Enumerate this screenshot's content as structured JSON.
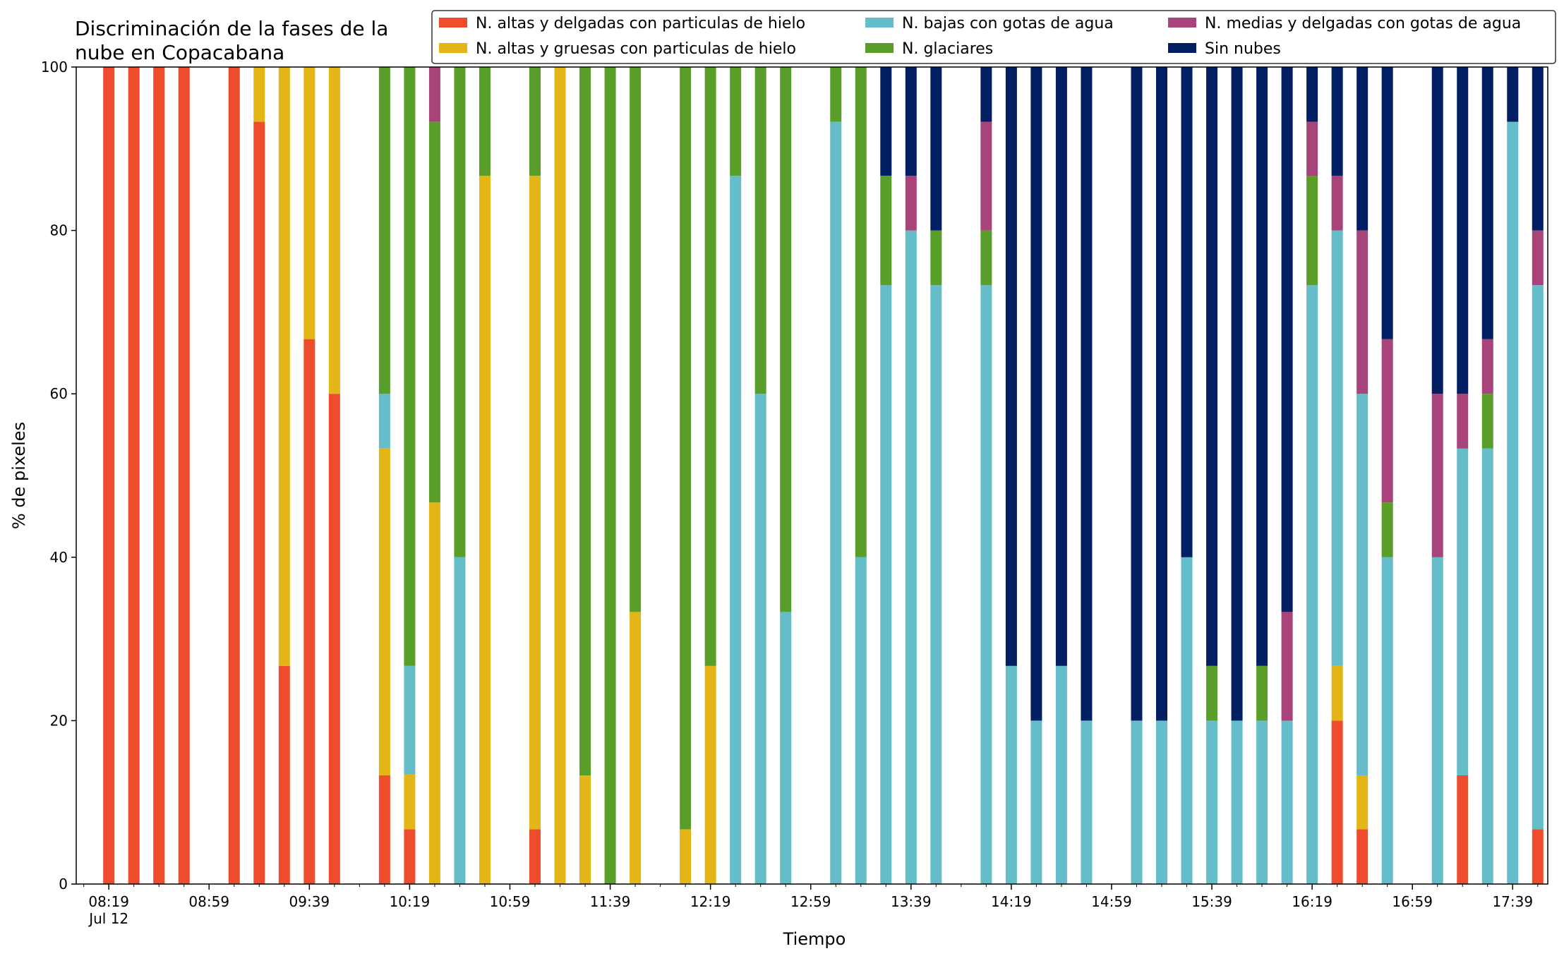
{
  "chart_data": {
    "type": "bar",
    "stacked": true,
    "title_lines": [
      "Discriminación de la fases de la",
      "nube en Copacabana"
    ],
    "xlabel": "Tiempo",
    "ylabel": "% de pixeles",
    "ylim": [
      0,
      100
    ],
    "yticks": [
      "0",
      "20",
      "40",
      "60",
      "80",
      "100"
    ],
    "xlim_minutes": [
      486,
      1073
    ],
    "xtick_labels": [
      "08:19",
      "08:59",
      "09:39",
      "10:19",
      "10:59",
      "11:39",
      "12:19",
      "12:59",
      "13:39",
      "14:19",
      "14:59",
      "15:39",
      "16:19",
      "16:59",
      "17:39"
    ],
    "xtick_sub_label": "Jul 12",
    "grid": false,
    "legend_position": "top-right",
    "legend_columns": 3,
    "series": [
      {
        "name": "N. altas y delgadas con particulas de hielo",
        "color": "#ee4c2c"
      },
      {
        "name": "N. altas y gruesas con particulas de hielo",
        "color": "#e3b517"
      },
      {
        "name": "N. bajas con gotas de agua",
        "color": "#64bdc8"
      },
      {
        "name": "N. glaciares",
        "color": "#5a9e2a"
      },
      {
        "name": "N. medias y delgadas con gotas de agua",
        "color": "#a8447a"
      },
      {
        "name": "Sin nubes",
        "color": "#021f63"
      }
    ],
    "categories": [
      "08:19",
      "08:29",
      "08:39",
      "08:49",
      "09:09",
      "09:19",
      "09:29",
      "09:39",
      "09:49",
      "10:09",
      "10:19",
      "10:29",
      "10:39",
      "10:49",
      "11:09",
      "11:19",
      "11:29",
      "11:39",
      "11:49",
      "12:09",
      "12:19",
      "12:29",
      "12:39",
      "12:49",
      "13:09",
      "13:19",
      "13:29",
      "13:39",
      "13:49",
      "14:09",
      "14:19",
      "14:29",
      "14:39",
      "14:49",
      "15:09",
      "15:19",
      "15:29",
      "15:39",
      "15:49",
      "15:59",
      "16:09",
      "16:19",
      "16:29",
      "16:39",
      "16:49",
      "17:09",
      "17:19",
      "17:29",
      "17:39",
      "17:49"
    ],
    "values": [
      [
        100,
        0,
        0,
        0,
        0,
        0
      ],
      [
        100,
        0,
        0,
        0,
        0,
        0
      ],
      [
        100,
        0,
        0,
        0,
        0,
        0
      ],
      [
        100,
        0,
        0,
        0,
        0,
        0
      ],
      [
        100,
        0,
        0,
        0,
        0,
        0
      ],
      [
        93.3,
        6.7,
        0,
        0,
        0,
        0
      ],
      [
        26.7,
        73.3,
        0,
        0,
        0,
        0
      ],
      [
        66.7,
        33.3,
        0,
        0,
        0,
        0
      ],
      [
        60,
        40,
        0,
        0,
        0,
        0
      ],
      [
        13.3,
        40,
        6.7,
        40,
        0,
        0
      ],
      [
        6.7,
        6.7,
        13.3,
        73.3,
        0,
        0
      ],
      [
        0,
        46.7,
        0,
        46.6,
        6.7,
        0
      ],
      [
        0,
        0,
        40,
        60,
        0,
        0
      ],
      [
        0,
        86.7,
        0,
        13.3,
        0,
        0
      ],
      [
        6.7,
        80,
        0,
        13.3,
        0,
        0
      ],
      [
        0,
        100,
        0,
        0,
        0,
        0
      ],
      [
        0,
        13.3,
        0,
        86.7,
        0,
        0
      ],
      [
        0,
        0,
        0,
        100,
        0,
        0
      ],
      [
        0,
        33.3,
        0,
        66.7,
        0,
        0
      ],
      [
        0,
        6.7,
        0,
        93.3,
        0,
        0
      ],
      [
        0,
        26.7,
        0,
        73.3,
        0,
        0
      ],
      [
        0,
        0,
        86.7,
        13.3,
        0,
        0
      ],
      [
        0,
        0,
        60,
        40,
        0,
        0
      ],
      [
        0,
        0,
        33.3,
        66.7,
        0,
        0
      ],
      [
        0,
        0,
        93.3,
        6.7,
        0,
        0
      ],
      [
        0,
        0,
        40,
        60,
        0,
        0
      ],
      [
        0,
        0,
        73.3,
        13.4,
        0,
        13.3
      ],
      [
        0,
        0,
        80,
        0,
        6.7,
        13.3
      ],
      [
        0,
        0,
        73.3,
        6.7,
        0,
        20
      ],
      [
        0,
        0,
        73.3,
        6.7,
        13.3,
        6.7
      ],
      [
        0,
        0,
        26.7,
        0,
        0,
        73.3
      ],
      [
        0,
        0,
        20,
        0,
        0,
        80
      ],
      [
        0,
        0,
        26.7,
        0,
        0,
        73.3
      ],
      [
        0,
        0,
        20,
        0,
        0,
        80
      ],
      [
        0,
        0,
        20,
        0,
        0,
        80
      ],
      [
        0,
        0,
        20,
        0,
        0,
        80
      ],
      [
        0,
        0,
        40,
        0,
        0,
        60
      ],
      [
        0,
        0,
        20,
        6.7,
        0,
        73.3
      ],
      [
        0,
        0,
        20,
        0,
        0,
        80
      ],
      [
        0,
        0,
        20,
        6.7,
        0,
        73.3
      ],
      [
        0,
        0,
        20,
        0,
        13.3,
        66.7
      ],
      [
        0,
        0,
        73.3,
        13.4,
        6.6,
        6.7
      ],
      [
        20,
        6.7,
        53.3,
        0,
        6.7,
        13.3
      ],
      [
        6.7,
        6.6,
        46.7,
        0,
        20,
        20
      ],
      [
        0,
        0,
        40,
        6.7,
        20,
        33.3
      ],
      [
        0,
        0,
        40,
        0,
        20,
        40
      ],
      [
        13.3,
        0,
        40,
        0,
        6.7,
        40
      ],
      [
        0,
        0,
        53.3,
        6.7,
        6.7,
        33.3
      ],
      [
        0,
        0,
        93.3,
        0,
        0,
        6.7
      ],
      [
        6.7,
        0,
        66.6,
        0,
        6.7,
        20
      ]
    ]
  }
}
